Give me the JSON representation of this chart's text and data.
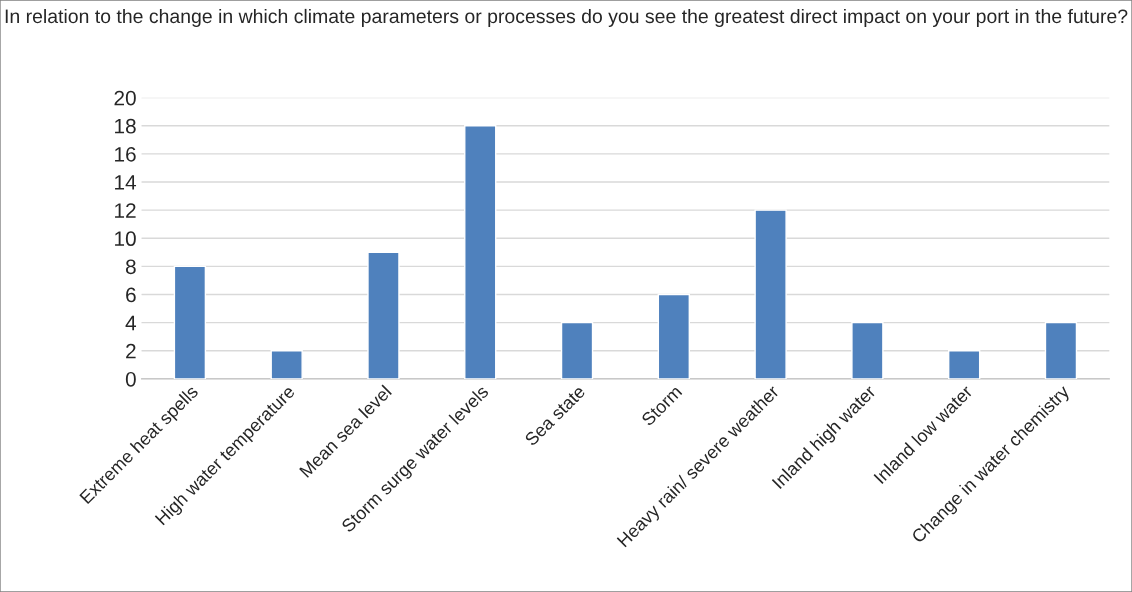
{
  "chart_data": {
    "type": "bar",
    "title": "In relation to the change in which climate parameters or processes do you see the greatest direct impact on your port in the future?",
    "categories": [
      "Extreme heat spells",
      "High water temperature",
      "Mean sea level",
      "Storm surge water levels",
      "Sea state",
      "Storm",
      "Heavy rain/ severe weather",
      "Inland high water",
      "Inland low water",
      "Change in water chemistry"
    ],
    "values": [
      8,
      2,
      9,
      18,
      4,
      6,
      12,
      4,
      2,
      4
    ],
    "color": "#4f81bd",
    "ylim": [
      0,
      20
    ],
    "yticks": [
      0,
      2,
      4,
      6,
      8,
      10,
      12,
      14,
      16,
      18,
      20
    ],
    "grid": "y"
  }
}
